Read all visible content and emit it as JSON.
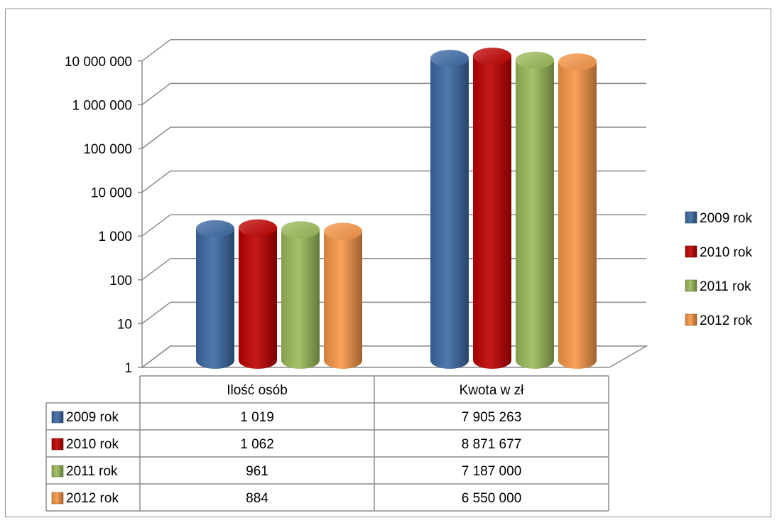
{
  "chart_data": {
    "type": "bar",
    "style": "3d-cylinder",
    "scale": "log",
    "ylim": [
      1,
      10000000
    ],
    "yticks": [
      "1",
      "10",
      "100",
      "1 000",
      "10 000",
      "100 000",
      "1 000 000",
      "10 000 000"
    ],
    "categories": [
      "Ilość osób",
      "Kwota w zł"
    ],
    "series": [
      {
        "name": "2009 rok",
        "color": "#3c6aa5",
        "values": [
          1019,
          7905263
        ],
        "labels": [
          "1 019",
          "7 905 263"
        ]
      },
      {
        "name": "2010 rok",
        "color": "#c00000",
        "values": [
          1062,
          8871677
        ],
        "labels": [
          "1 062",
          "8 871 677"
        ]
      },
      {
        "name": "2011 rok",
        "color": "#9bbb59",
        "values": [
          961,
          7187000
        ],
        "labels": [
          "961",
          "7 187 000"
        ]
      },
      {
        "name": "2012 rok",
        "color": "#f79646",
        "values": [
          884,
          6550000
        ],
        "labels": [
          "884",
          "6 550 000"
        ]
      }
    ],
    "legend": "right",
    "grid": true,
    "data_table": true
  }
}
